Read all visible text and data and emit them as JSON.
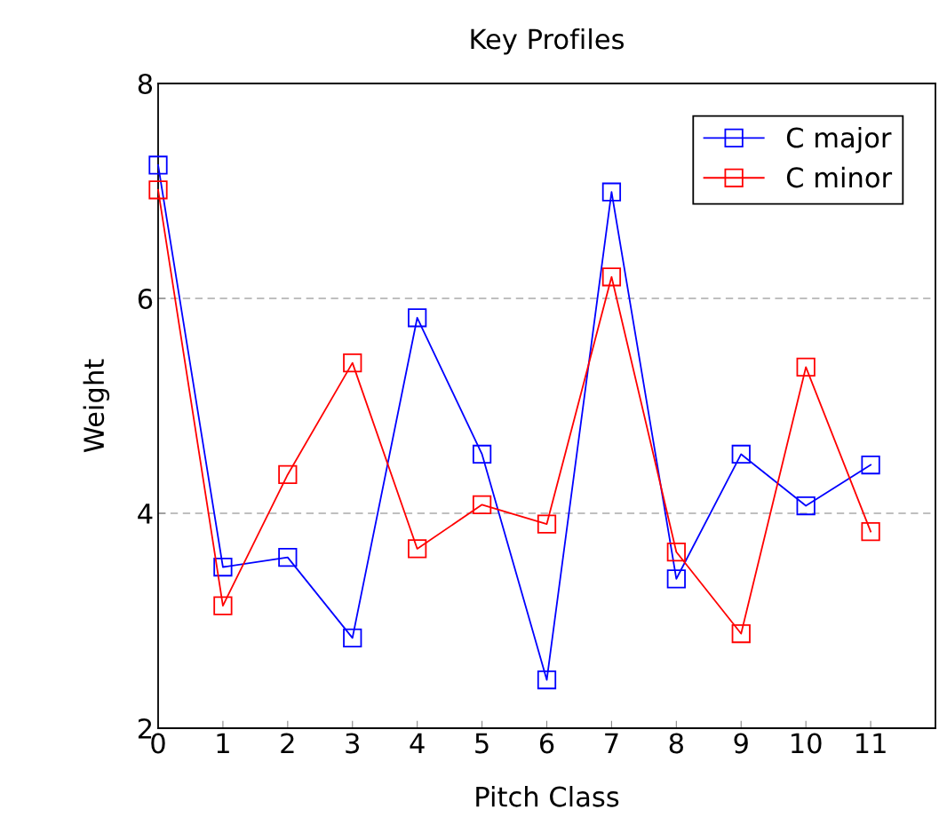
{
  "chart_data": {
    "type": "line",
    "title": "Key Profiles",
    "xlabel": "Pitch Class",
    "ylabel": "Weight",
    "x": [
      0,
      1,
      2,
      3,
      4,
      5,
      6,
      7,
      8,
      9,
      10,
      11
    ],
    "series": [
      {
        "name": "C major",
        "color": "#0000ff",
        "values": [
          7.24,
          3.5,
          3.59,
          2.84,
          5.82,
          4.55,
          2.45,
          6.99,
          3.39,
          4.55,
          4.07,
          4.45
        ]
      },
      {
        "name": "C minor",
        "color": "#ff0000",
        "values": [
          7.01,
          3.14,
          4.36,
          5.4,
          3.67,
          4.08,
          3.9,
          6.2,
          3.64,
          2.88,
          5.36,
          3.83
        ]
      }
    ],
    "xlim": [
      0,
      12
    ],
    "xticks": [
      0,
      1,
      2,
      3,
      4,
      5,
      6,
      7,
      8,
      9,
      10,
      11
    ],
    "ylim": [
      2,
      8
    ],
    "yticks": [
      2,
      4,
      6,
      8
    ],
    "grid": "y",
    "legend": "top right",
    "marker": "square",
    "line_style": "solid"
  }
}
